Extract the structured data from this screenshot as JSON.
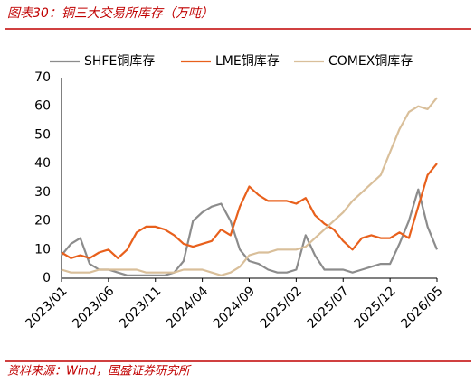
{
  "chart_data": {
    "type": "line",
    "title": "图表30：铜三大交易所库存（万吨）",
    "source": "资料来源：Wind，国盛证券研究所",
    "categories": [
      "2023/01",
      null,
      null,
      null,
      null,
      "2023/06",
      null,
      null,
      null,
      null,
      "2023/11",
      null,
      null,
      null,
      null,
      "2024/04",
      null,
      null,
      null,
      null,
      "2024/09",
      null,
      null,
      null,
      null,
      "2025/02",
      null,
      null,
      null,
      null,
      "2025/07",
      null,
      null,
      null,
      null,
      "2025/12",
      null,
      null,
      null,
      null,
      "2026/05"
    ],
    "series": [
      {
        "name": "SHFE铜库存",
        "color": "#8c8c8c",
        "values": [
          8,
          12,
          14,
          5,
          3,
          3,
          2,
          1,
          1,
          1,
          1,
          1,
          2,
          6,
          20,
          23,
          25,
          26,
          20,
          10,
          6,
          5,
          3,
          2,
          2,
          3,
          15,
          8,
          3,
          3,
          3,
          2,
          3,
          4,
          5,
          5,
          12,
          20,
          31,
          18,
          10
        ]
      },
      {
        "name": "LME铜库存",
        "color": "#e8601c",
        "values": [
          9,
          7,
          8,
          7,
          9,
          10,
          7,
          10,
          16,
          18,
          18,
          17,
          15,
          12,
          11,
          12,
          13,
          17,
          15,
          25,
          32,
          29,
          27,
          27,
          27,
          26,
          28,
          22,
          19,
          17,
          13,
          10,
          14,
          15,
          14,
          14,
          16,
          14,
          25,
          36,
          40
        ]
      },
      {
        "name": "COMEX铜库存",
        "color": "#d9bf9a",
        "values": [
          3,
          2,
          2,
          2,
          3,
          3,
          3,
          3,
          3,
          2,
          2,
          2,
          2,
          3,
          3,
          3,
          2,
          1,
          2,
          4,
          8,
          9,
          9,
          10,
          10,
          10,
          11,
          14,
          17,
          20,
          23,
          27,
          30,
          33,
          36,
          44,
          52,
          58,
          60,
          59,
          63
        ]
      }
    ],
    "ylim": [
      0,
      70
    ],
    "yticks": [
      0,
      10,
      20,
      30,
      40,
      50,
      60,
      70
    ]
  }
}
